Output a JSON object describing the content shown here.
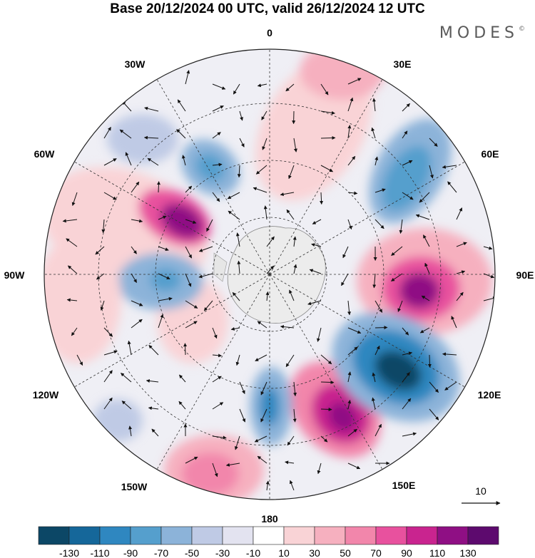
{
  "title": "Base 20/12/2024 00 UTC, valid 26/12/2024 12 UTC",
  "brand": "MODES",
  "brand_mark": "©",
  "map": {
    "projection": "south polar stereographic",
    "field": "wind anomaly",
    "longitude_labels": {
      "n": "0",
      "ne": "30E",
      "ene": "60E",
      "e": "90E",
      "ese": "120E",
      "se": "150E",
      "s": "180",
      "sw": "150W",
      "wsw": "120W",
      "w": "90W",
      "wnw": "60W",
      "nw": "30W"
    },
    "reference_vector_label": "10"
  },
  "colorbar": {
    "colors": [
      "#0c4766",
      "#15679a",
      "#2f87c0",
      "#559fcd",
      "#8cb3d9",
      "#bfcae5",
      "#e3e3f0",
      "#ffffff",
      "#f9d3d6",
      "#f6b0bf",
      "#f286ab",
      "#e8519e",
      "#c9248f",
      "#8f0f84",
      "#5d0a6e"
    ],
    "labels": [
      "-130",
      "-110",
      "-90",
      "-70",
      "-50",
      "-30",
      "-10",
      "10",
      "30",
      "50",
      "70",
      "90",
      "110",
      "130"
    ]
  }
}
